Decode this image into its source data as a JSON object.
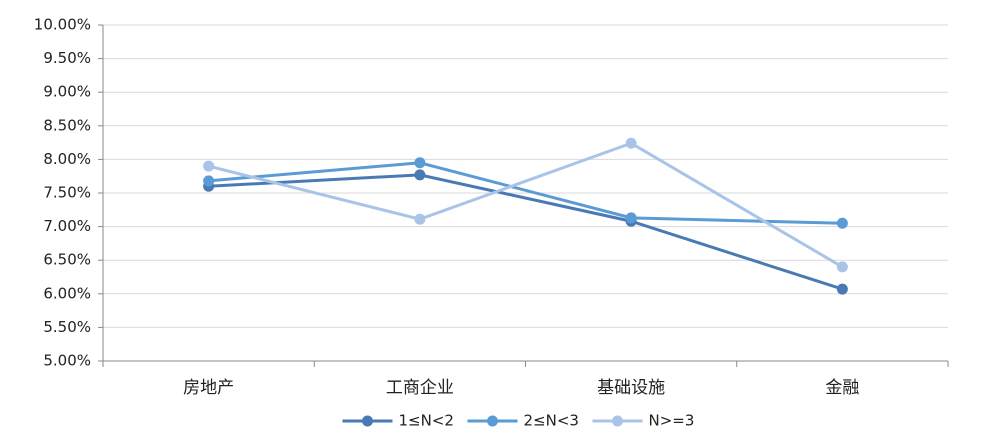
{
  "chart_data": {
    "type": "line",
    "categories": [
      "房地产",
      "工商企业",
      "基础设施",
      "金融"
    ],
    "series": [
      {
        "name": "1≤N<2",
        "color": "#4a7ab4",
        "values": [
          7.6,
          7.77,
          7.08,
          6.07
        ]
      },
      {
        "name": "2≤N<3",
        "color": "#5b9bd5",
        "values": [
          7.68,
          7.95,
          7.13,
          7.05
        ]
      },
      {
        "name": "N>=3",
        "color": "#a9c4e8",
        "values": [
          7.9,
          7.11,
          8.24,
          6.4
        ]
      }
    ],
    "ylim": [
      5,
      10
    ],
    "yticks": [
      {
        "value": 5,
        "label": "5.00%"
      },
      {
        "value": 5.5,
        "label": "5.50%"
      },
      {
        "value": 6,
        "label": "6.00%"
      },
      {
        "value": 6.5,
        "label": "6.50%"
      },
      {
        "value": 7,
        "label": "7.00%"
      },
      {
        "value": 7.5,
        "label": "7.50%"
      },
      {
        "value": 8,
        "label": "8.00%"
      },
      {
        "value": 8.5,
        "label": "8.50%"
      },
      {
        "value": 9,
        "label": "9.00%"
      },
      {
        "value": 9.5,
        "label": "9.50%"
      },
      {
        "value": 10,
        "label": "10.00%"
      }
    ],
    "grid": true,
    "legend": "bottom"
  }
}
